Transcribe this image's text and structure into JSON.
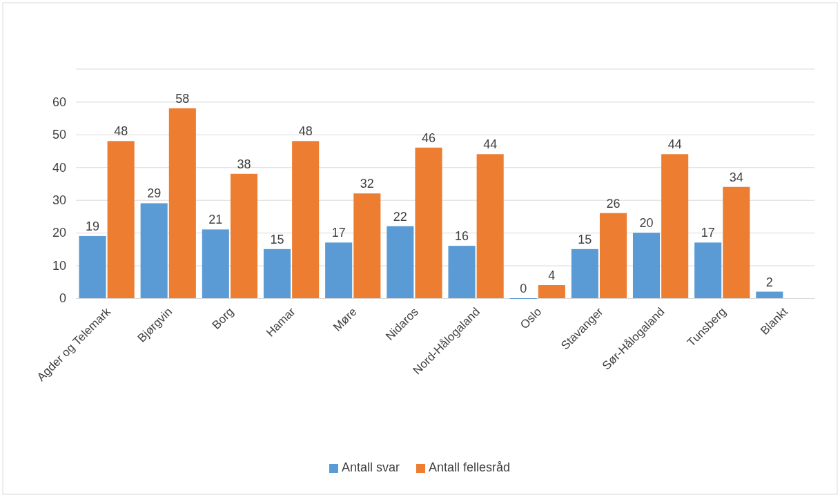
{
  "chart_data": {
    "type": "bar",
    "categories": [
      "Agder og Telemark",
      "Bjørgvin",
      "Borg",
      "Hamar",
      "Møre",
      "Nidaros",
      "Nord-Hålogaland",
      "Oslo",
      "Stavanger",
      "Sør-Hålogaland",
      "Tunsberg",
      "Blankt"
    ],
    "series": [
      {
        "name": "Antall svar",
        "color": "#5b9bd5",
        "values": [
          19,
          29,
          21,
          15,
          17,
          22,
          16,
          0,
          15,
          20,
          17,
          2
        ]
      },
      {
        "name": "Antall fellesråd",
        "color": "#ed7d31",
        "values": [
          48,
          58,
          38,
          48,
          32,
          46,
          44,
          4,
          26,
          44,
          34,
          null
        ]
      }
    ],
    "ylim": [
      0,
      70
    ],
    "yticks": [
      0,
      10,
      20,
      30,
      40,
      50,
      60
    ],
    "grid": "y",
    "legend": "bottom",
    "data_labels": true
  }
}
